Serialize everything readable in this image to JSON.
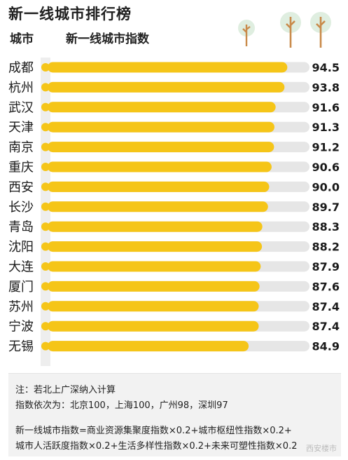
{
  "title": "新一线城市排行榜",
  "headers": {
    "city": "城市",
    "index": "新一线城市指数"
  },
  "chart_data": {
    "type": "bar",
    "orientation": "horizontal",
    "categories": [
      "成都",
      "杭州",
      "武汉",
      "天津",
      "南京",
      "重庆",
      "西安",
      "长沙",
      "青岛",
      "沈阳",
      "大连",
      "厦门",
      "苏州",
      "宁波",
      "无锡"
    ],
    "values": [
      94.5,
      93.8,
      91.6,
      91.3,
      91.2,
      90.6,
      90.0,
      89.7,
      88.3,
      88.2,
      87.9,
      87.6,
      87.4,
      87.4,
      84.9
    ],
    "value_labels": [
      "94.5",
      "93.8",
      "91.6",
      "91.3",
      "91.2",
      "90.6",
      "90.0",
      "89.7",
      "88.3",
      "88.2",
      "87.9",
      "87.6",
      "87.4",
      "87.4",
      "84.9"
    ],
    "xlim": [
      35,
      100
    ],
    "title": "新一线城市排行榜",
    "xlabel": "",
    "ylabel": "",
    "grid": false,
    "colors": {
      "bar": "#f5c518",
      "track": "#e6e6e6",
      "dot": "#f5c518",
      "axis": "#e3e3e3"
    }
  },
  "notes": {
    "line1": "注：若北上广深纳入计算",
    "line2": "指数依次为：北京100，上海100，广州98，深圳97",
    "line3": "新一线城市指数=商业资源集聚度指数×0.2+城市枢纽性指数×0.2+",
    "line4": "城市人活跃度指数×0.2+生活多样性指数×0.2+未来可塑性指数×0.2"
  },
  "watermark": "西安楼市"
}
